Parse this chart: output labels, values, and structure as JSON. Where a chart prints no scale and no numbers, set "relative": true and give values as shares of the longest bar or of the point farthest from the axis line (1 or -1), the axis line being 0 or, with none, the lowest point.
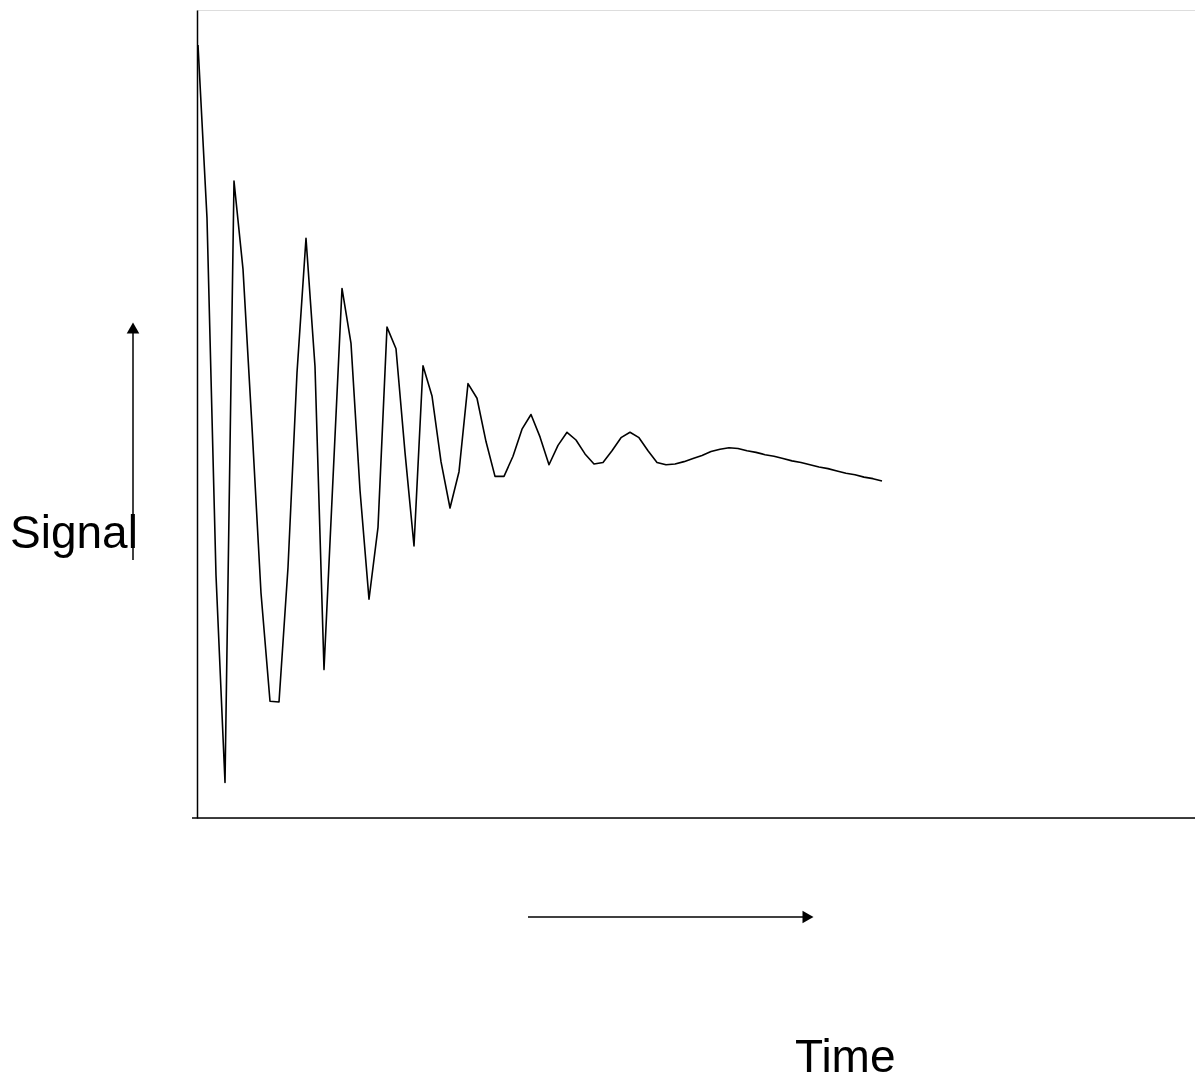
{
  "chart_data": {
    "type": "line",
    "relative": true,
    "xlabel": "Time",
    "ylabel": "Signal",
    "grid": false,
    "marker": "none",
    "line_style": "solid",
    "categories": [
      null,
      null,
      null,
      null,
      null,
      null,
      null,
      null,
      null,
      null,
      null,
      null,
      null,
      null,
      null,
      null,
      null,
      null,
      null,
      null,
      null,
      null,
      null,
      null,
      null,
      null,
      null,
      null,
      null,
      null,
      null,
      null,
      null,
      null,
      null,
      null,
      null,
      null,
      null,
      null,
      null,
      null,
      null,
      null,
      null,
      null,
      null,
      null,
      null,
      null,
      null,
      null,
      null,
      null,
      null,
      null,
      null,
      null,
      null,
      null,
      null,
      null,
      null,
      null,
      null,
      null,
      null,
      null,
      null,
      null,
      null,
      null,
      null,
      null,
      null,
      null,
      null
    ],
    "series": [
      {
        "color": "#000000",
        "values": [
          1.0,
          0.776,
          0.314,
          0.046,
          0.824,
          0.71,
          0.506,
          0.291,
          0.151,
          0.15,
          0.324,
          0.576,
          0.75,
          0.584,
          0.192,
          0.439,
          0.685,
          0.614,
          0.424,
          0.283,
          0.376,
          0.635,
          0.607,
          0.473,
          0.352,
          0.585,
          0.546,
          0.461,
          0.401,
          0.448,
          0.562,
          0.543,
          0.487,
          0.442,
          0.442,
          0.468,
          0.503,
          0.522,
          0.493,
          0.457,
          0.482,
          0.499,
          0.489,
          0.471,
          0.458,
          0.46,
          0.475,
          0.492,
          0.499,
          0.492,
          0.475,
          0.46,
          0.457,
          0.458,
          0.461,
          0.465,
          0.469,
          0.474,
          0.477,
          0.479,
          0.478,
          0.475,
          0.473,
          0.47,
          0.468,
          0.465,
          0.462,
          0.46,
          0.457,
          0.454,
          0.452,
          0.449,
          0.446,
          0.444,
          0.441,
          0.439,
          0.436
        ]
      }
    ]
  }
}
